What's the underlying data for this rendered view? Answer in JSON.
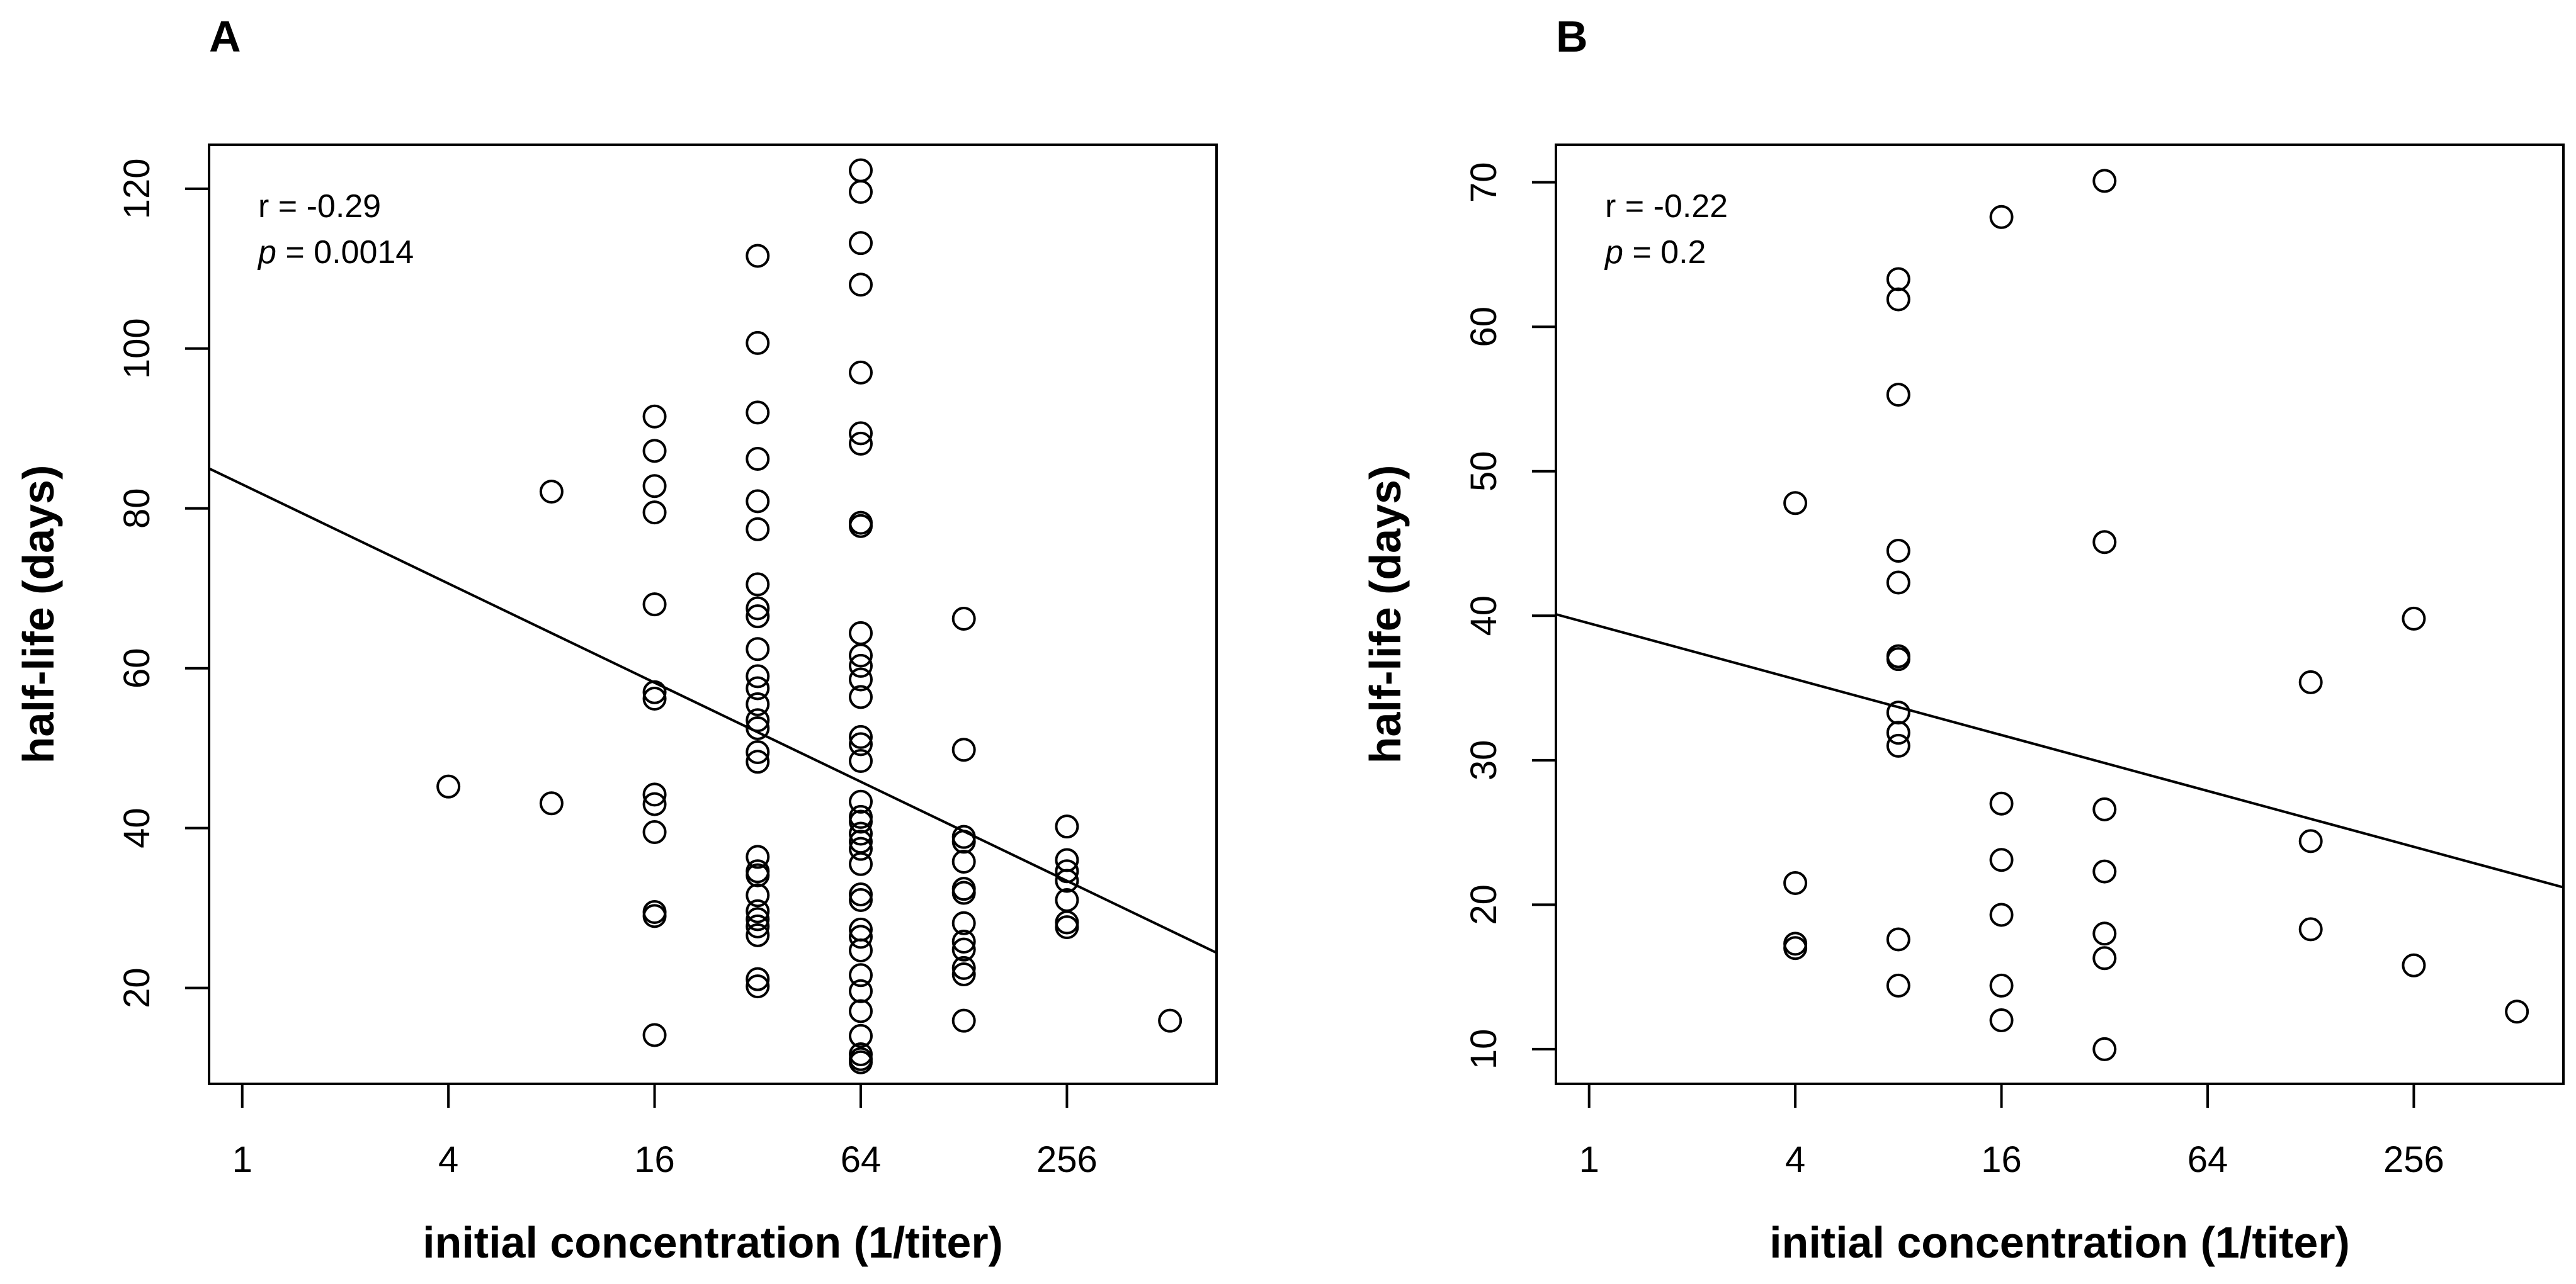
{
  "figure_labels": [
    "A",
    "B"
  ],
  "chart_data": [
    {
      "type": "scatter",
      "panel": "A",
      "xlabel": "initial concentration (1/titer)",
      "ylabel": "half-life (days)",
      "x_scale": "log2",
      "x_ticks": [
        1,
        4,
        16,
        64,
        256
      ],
      "x_tick_labels": [
        "1",
        "4",
        "16",
        "64",
        "256"
      ],
      "xlim": [
        0.8,
        700
      ],
      "y_ticks": [
        20,
        40,
        60,
        80,
        100,
        120
      ],
      "y_tick_labels": [
        "20",
        "40",
        "60",
        "80",
        "100",
        "120"
      ],
      "ylim": [
        8,
        125.5
      ],
      "annotation": {
        "r_label": "r = -0.29",
        "p_symbol": "p",
        "p_value": " = 0.0014"
      },
      "fit_line": {
        "x": [
          0.8,
          700
        ],
        "y": [
          85.0,
          24.4
        ]
      },
      "points": [
        [
          4,
          45.2
        ],
        [
          8,
          82.1
        ],
        [
          8,
          43.1
        ],
        [
          16,
          91.5
        ],
        [
          16,
          87.2
        ],
        [
          16,
          82.8
        ],
        [
          16,
          79.5
        ],
        [
          16,
          68.0
        ],
        [
          16,
          57.0
        ],
        [
          16,
          56.2
        ],
        [
          16,
          44.2
        ],
        [
          16,
          43.0
        ],
        [
          16,
          39.5
        ],
        [
          16,
          29.5
        ],
        [
          16,
          29.0
        ],
        [
          16,
          14.1
        ],
        [
          32,
          111.6
        ],
        [
          32,
          100.7
        ],
        [
          32,
          92.0
        ],
        [
          32,
          86.2
        ],
        [
          32,
          80.9
        ],
        [
          32,
          77.4
        ],
        [
          32,
          70.5
        ],
        [
          32,
          67.5
        ],
        [
          32,
          66.5
        ],
        [
          32,
          62.4
        ],
        [
          32,
          59.0
        ],
        [
          32,
          57.5
        ],
        [
          32,
          55.5
        ],
        [
          32,
          53.5
        ],
        [
          32,
          52.5
        ],
        [
          32,
          49.5
        ],
        [
          32,
          48.3
        ],
        [
          32,
          36.4
        ],
        [
          32,
          34.6
        ],
        [
          32,
          34.1
        ],
        [
          32,
          31.6
        ],
        [
          32,
          29.6
        ],
        [
          32,
          28.6
        ],
        [
          32,
          27.7
        ],
        [
          32,
          26.6
        ],
        [
          32,
          21.1
        ],
        [
          32,
          20.2
        ],
        [
          64,
          122.3
        ],
        [
          64,
          119.6
        ],
        [
          64,
          113.2
        ],
        [
          64,
          108.0
        ],
        [
          64,
          97.0
        ],
        [
          64,
          89.4
        ],
        [
          64,
          88.1
        ],
        [
          64,
          78.2
        ],
        [
          64,
          77.8
        ],
        [
          64,
          64.4
        ],
        [
          64,
          61.6
        ],
        [
          64,
          60.3
        ],
        [
          64,
          58.6
        ],
        [
          64,
          56.4
        ],
        [
          64,
          51.4
        ],
        [
          64,
          50.5
        ],
        [
          64,
          48.4
        ],
        [
          64,
          43.3
        ],
        [
          64,
          41.4
        ],
        [
          64,
          40.8
        ],
        [
          64,
          39.3
        ],
        [
          64,
          38.3
        ],
        [
          64,
          37.4
        ],
        [
          64,
          35.5
        ],
        [
          64,
          31.7
        ],
        [
          64,
          31.0
        ],
        [
          64,
          27.3
        ],
        [
          64,
          26.4
        ],
        [
          64,
          24.7
        ],
        [
          64,
          21.6
        ],
        [
          64,
          19.6
        ],
        [
          64,
          17.1
        ],
        [
          64,
          14.0
        ],
        [
          64,
          11.7
        ],
        [
          64,
          11.1
        ],
        [
          64,
          10.7
        ],
        [
          128,
          66.2
        ],
        [
          128,
          49.8
        ],
        [
          128,
          38.9
        ],
        [
          128,
          38.3
        ],
        [
          128,
          35.8
        ],
        [
          128,
          32.4
        ],
        [
          128,
          31.9
        ],
        [
          128,
          28.1
        ],
        [
          128,
          25.8
        ],
        [
          128,
          24.8
        ],
        [
          128,
          22.5
        ],
        [
          128,
          21.7
        ],
        [
          128,
          15.9
        ],
        [
          256,
          40.2
        ],
        [
          256,
          36.0
        ],
        [
          256,
          34.6
        ],
        [
          256,
          33.4
        ],
        [
          256,
          31.0
        ],
        [
          256,
          28.2
        ],
        [
          256,
          27.6
        ],
        [
          512,
          15.9
        ]
      ]
    },
    {
      "type": "scatter",
      "panel": "B",
      "xlabel": "initial concentration (1/titer)",
      "ylabel": "half-life (days)",
      "x_scale": "log2",
      "x_ticks": [
        1,
        4,
        16,
        64,
        256
      ],
      "x_tick_labels": [
        "1",
        "4",
        "16",
        "64",
        "256"
      ],
      "xlim": [
        0.8,
        700
      ],
      "y_ticks": [
        10,
        20,
        30,
        40,
        50,
        60,
        70
      ],
      "y_tick_labels": [
        "10",
        "20",
        "30",
        "40",
        "50",
        "60",
        "70"
      ],
      "ylim": [
        7.6,
        72.6
      ],
      "annotation": {
        "r_label": "r = -0.22",
        "p_symbol": "p",
        "p_value": " = 0.2"
      },
      "fit_line": {
        "x": [
          0.8,
          700
        ],
        "y": [
          40.1,
          21.2
        ]
      },
      "points": [
        [
          4,
          47.8
        ],
        [
          4,
          21.5
        ],
        [
          4,
          17.3
        ],
        [
          4,
          17.0
        ],
        [
          8,
          63.3
        ],
        [
          8,
          61.9
        ],
        [
          8,
          55.3
        ],
        [
          8,
          44.5
        ],
        [
          8,
          42.3
        ],
        [
          8,
          37.2
        ],
        [
          8,
          37.0
        ],
        [
          8,
          33.3
        ],
        [
          8,
          31.9
        ],
        [
          8,
          31.0
        ],
        [
          8,
          17.6
        ],
        [
          8,
          14.4
        ],
        [
          16,
          67.6
        ],
        [
          16,
          27.0
        ],
        [
          16,
          23.1
        ],
        [
          16,
          19.3
        ],
        [
          16,
          14.4
        ],
        [
          16,
          12.0
        ],
        [
          32,
          70.1
        ],
        [
          32,
          45.1
        ],
        [
          32,
          26.6
        ],
        [
          32,
          22.3
        ],
        [
          32,
          18.0
        ],
        [
          32,
          16.3
        ],
        [
          32,
          10.0
        ],
        [
          128,
          35.4
        ],
        [
          128,
          24.4
        ],
        [
          128,
          18.3
        ],
        [
          256,
          39.8
        ],
        [
          256,
          15.8
        ],
        [
          512,
          12.6
        ]
      ]
    }
  ]
}
